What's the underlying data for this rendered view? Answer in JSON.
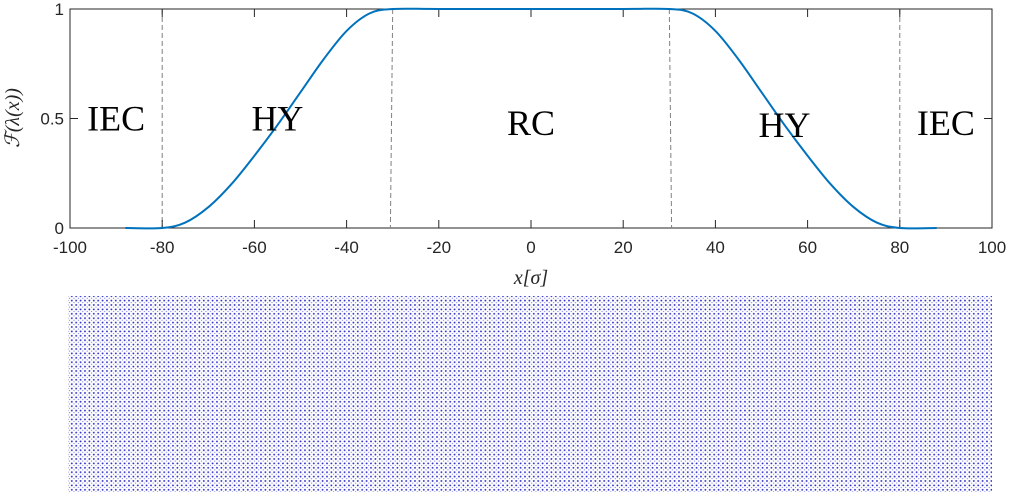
{
  "chart_data": [
    {
      "type": "line",
      "title": "",
      "xlabel": "x[σ]",
      "ylabel": "ℱ(λ(x))",
      "xlim": [
        -100,
        100
      ],
      "ylim": [
        0,
        1
      ],
      "xticks": [
        "-100",
        "-80",
        "-60",
        "-40",
        "-20",
        "0",
        "20",
        "40",
        "60",
        "80",
        "100"
      ],
      "yticks": [
        "0",
        "0.5",
        "1"
      ],
      "grid": false,
      "series": [
        {
          "name": "",
          "color": "#0072BD",
          "x": [
            -88,
            -80,
            -75,
            -70,
            -65,
            -60,
            -55,
            -50,
            -45,
            -40,
            -35,
            -30,
            -20,
            0,
            20,
            30,
            35,
            40,
            45,
            50,
            55,
            60,
            65,
            70,
            75,
            80,
            88
          ],
          "y": [
            0,
            0,
            0.025,
            0.095,
            0.2,
            0.33,
            0.47,
            0.62,
            0.77,
            0.9,
            0.98,
            1,
            1,
            1,
            1,
            1,
            0.98,
            0.9,
            0.77,
            0.62,
            0.47,
            0.33,
            0.2,
            0.095,
            0.025,
            0,
            0
          ]
        }
      ],
      "boundaries": [
        {
          "x_top": -80,
          "x_bottom": -80
        },
        {
          "x_top": -30,
          "x_bottom": -30.5
        },
        {
          "x_top": 30,
          "x_bottom": 30.5
        },
        {
          "x_top": 80,
          "x_bottom": 80
        }
      ],
      "annotations": [
        {
          "text": "IEC",
          "x": -90,
          "y": 0.5
        },
        {
          "text": "HY",
          "x": -55,
          "y": 0.5
        },
        {
          "text": "RC",
          "x": 0,
          "y": 0.48
        },
        {
          "text": "HY",
          "x": 55,
          "y": 0.47
        },
        {
          "text": "IEC",
          "x": 90,
          "y": 0.48
        }
      ],
      "boundary_color": "#808080"
    },
    {
      "type": "scatter",
      "title": "",
      "description_color": "#2B2BC8",
      "xlim": [
        -100,
        100
      ]
    }
  ]
}
